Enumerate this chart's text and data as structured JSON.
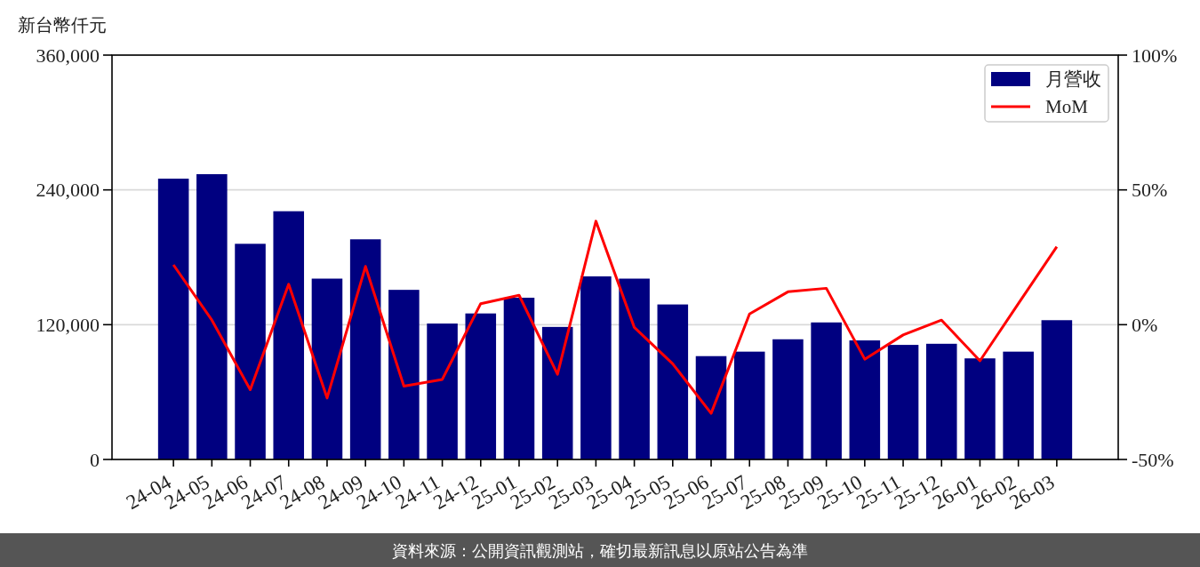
{
  "chart_data": {
    "type": "bar",
    "ylabel": "新台幣仟元",
    "categories": [
      "24-04",
      "24-05",
      "24-06",
      "24-07",
      "24-08",
      "24-09",
      "24-10",
      "24-11",
      "24-12",
      "25-01",
      "25-02",
      "25-03",
      "25-04",
      "25-05",
      "25-06",
      "25-07",
      "25-08",
      "25-09",
      "25-10",
      "25-11",
      "25-12",
      "26-01",
      "26-02",
      "26-03"
    ],
    "series": [
      {
        "name": "月營收",
        "color": "#000080",
        "values": [
          250000,
          254000,
          192000,
          221000,
          161000,
          196000,
          151000,
          121000,
          130000,
          144000,
          118000,
          163000,
          161000,
          138000,
          92000,
          96000,
          107000,
          122000,
          106000,
          102000,
          103000,
          90000,
          96000,
          124000
        ]
      },
      {
        "name": "MoM",
        "type": "line",
        "axis": "y2",
        "color": "#ff0000",
        "values": [
          22.2,
          1.7,
          -24.1,
          15.0,
          -27.2,
          21.6,
          -22.8,
          -20.3,
          7.8,
          10.9,
          -18.4,
          38.4,
          -1.0,
          -14.5,
          -32.9,
          4.0,
          12.2,
          13.5,
          -12.8,
          -3.8,
          1.7,
          -13.4,
          7.8,
          28.9
        ]
      }
    ],
    "ylim": [
      0,
      360000
    ],
    "yticks": [
      0,
      {
        "value": 120000,
        "label": "120,000"
      },
      {
        "value": 240000,
        "label": "240,000"
      },
      {
        "value": 360000,
        "label": "360,000"
      }
    ],
    "y2lim": [
      -50,
      100
    ],
    "y2ticks": [
      {
        "value": -50,
        "label": "-50%"
      },
      {
        "value": 0,
        "label": "0%"
      },
      {
        "value": 50,
        "label": "50%"
      },
      {
        "value": 100,
        "label": "100%"
      }
    ],
    "grid": "y",
    "legend": "top right",
    "line_style": "solid",
    "annotations": [
      "資料來源：公開資訊觀測站，確切最新訊息以原站公告為準"
    ]
  }
}
